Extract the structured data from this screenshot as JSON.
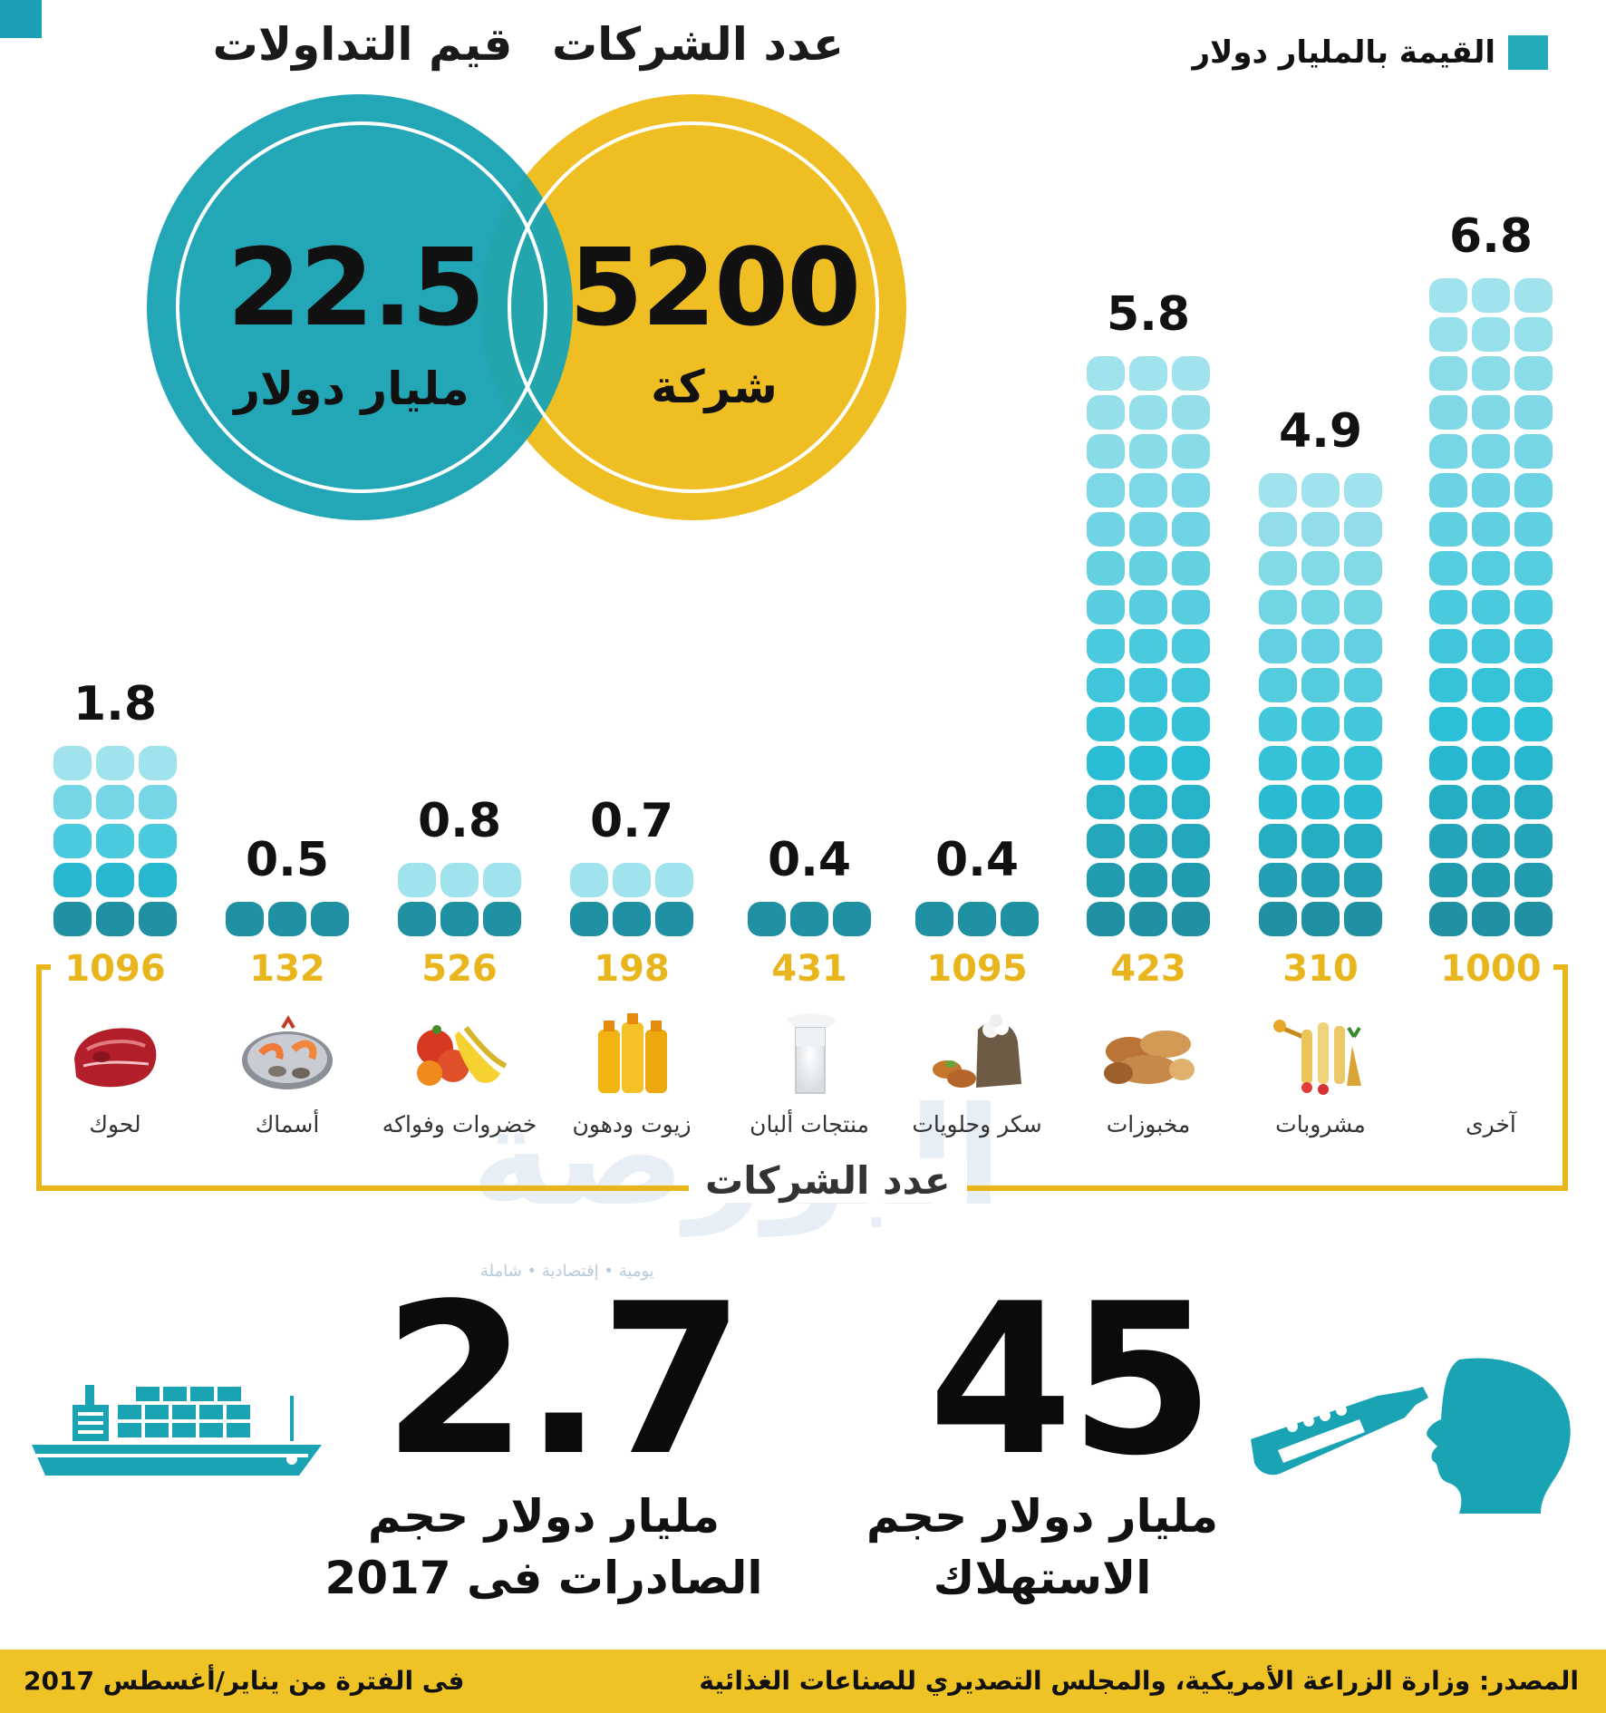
{
  "legend": {
    "label": "القيمة بالمليار دولار",
    "color": "#22aab8"
  },
  "circles": {
    "companies": {
      "title": "عدد الشركات",
      "value": "5200",
      "unit": "شركة",
      "color": "#efbe22"
    },
    "trading": {
      "title": "قيم التداولات",
      "value": "22.5",
      "unit": "مليار دولار",
      "color": "#1aa3b3"
    }
  },
  "frame_title": "عدد الشركات",
  "chart_data": {
    "type": "bar",
    "categories": [
      "آخرى",
      "مشروبات",
      "مخبوزات",
      "سكر وحلويات",
      "منتجات ألبان",
      "زيوت ودهون",
      "خضروات وفواكه",
      "أسماك",
      "لحوك"
    ],
    "values": [
      6.8,
      4.9,
      5.8,
      0.4,
      0.4,
      0.7,
      0.8,
      0.5,
      1.8
    ],
    "value_labels": [
      "6.8",
      "4.9",
      "5.8",
      "0.4",
      "0.4",
      "0.7",
      "0.8",
      "0.5",
      "1.8"
    ],
    "company_counts": [
      "1000",
      "310",
      "423",
      "1095",
      "431",
      "198",
      "526",
      "132",
      "1096"
    ],
    "series": [
      {
        "name": "القيمة بالمليار دولار",
        "values": [
          6.8,
          4.9,
          5.8,
          0.4,
          0.4,
          0.7,
          0.8,
          0.5,
          1.8
        ]
      }
    ],
    "icons": [
      "none",
      "drinks-icon",
      "bread-icon",
      "sweets-icon",
      "milk-icon",
      "oil-icon",
      "fruit-vegetables-icon",
      "seafood-icon",
      "meat-icon"
    ],
    "ylabel": "",
    "xlabel": ""
  },
  "watermark": {
    "text": "البورصة",
    "sub": "يومية • إقتصادية • شاملة"
  },
  "stats": {
    "exports": {
      "value": "2.7",
      "caption_line1": "مليار دولار حجم",
      "caption_line2": "الصادرات فى 2017",
      "icon": "ship-icon"
    },
    "consumption": {
      "value": "45",
      "caption_line1": "مليار دولار حجم",
      "caption_line2": "الاستهلاك",
      "icon": "drinking-head-icon"
    }
  },
  "footer": {
    "source": "المصدر: وزارة الزراعة الأمريكية، والمجلس التصديري للصناعات الغذائية",
    "period": "فى الفترة من يناير/أغسطس 2017",
    "color": "#efc326"
  }
}
